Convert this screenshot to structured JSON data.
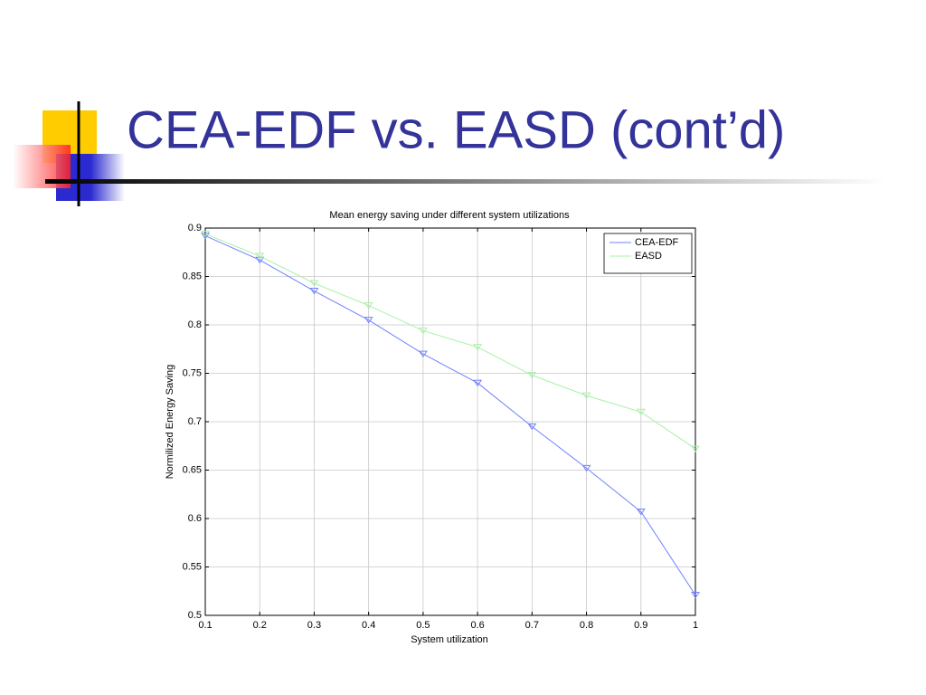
{
  "slide": {
    "title": "CEA-EDF vs. EASD (cont’d)"
  },
  "chart_data": {
    "type": "line",
    "title": "Mean energy saving under different system utilizations",
    "x_label": "System utilization",
    "y_label": "Normilized Energy Saving",
    "x": [
      0.1,
      0.2,
      0.3,
      0.4,
      0.5,
      0.6,
      0.7,
      0.8,
      0.9,
      1
    ],
    "series": [
      {
        "name": "CEA-EDF",
        "color": "#7080ff",
        "values": [
          0.892,
          0.867,
          0.835,
          0.805,
          0.77,
          0.74,
          0.695,
          0.652,
          0.607,
          0.521
        ]
      },
      {
        "name": "EASD",
        "color": "#a8f0a8",
        "values": [
          0.894,
          0.871,
          0.843,
          0.82,
          0.794,
          0.777,
          0.748,
          0.727,
          0.71,
          0.672
        ]
      }
    ],
    "xlim": [
      0.1,
      1
    ],
    "ylim": [
      0.5,
      0.9
    ],
    "xticks": [
      0.1,
      0.2,
      0.3,
      0.4,
      0.5,
      0.6,
      0.7,
      0.8,
      0.9,
      1
    ],
    "yticks": [
      0.5,
      0.55,
      0.6,
      0.65,
      0.7,
      0.75,
      0.8,
      0.85,
      0.9
    ],
    "grid": true,
    "legend": "upper right"
  }
}
